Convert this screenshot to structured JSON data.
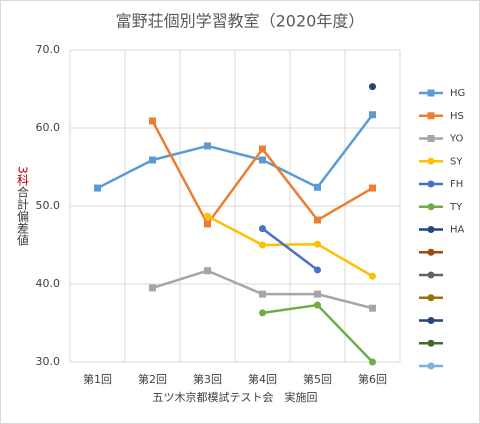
{
  "chart_data": {
    "type": "line",
    "title": "富野荘個別学習教室（2020年度）",
    "xlabel": "五ツ木京都模試テスト会　実施回",
    "ylabel": "3科合計偏差値",
    "categories": [
      "第1回",
      "第2回",
      "第3回",
      "第4回",
      "第5回",
      "第6回"
    ],
    "ylim": [
      30,
      70
    ],
    "yticks": [
      {
        "value": 30,
        "label": "30.0"
      },
      {
        "value": 40,
        "label": "40.0"
      },
      {
        "value": 50,
        "label": "50.0"
      },
      {
        "value": 60,
        "label": "60.0"
      },
      {
        "value": 70,
        "label": "70.0"
      }
    ],
    "grid": true,
    "legend": "right",
    "series": [
      {
        "name": "HG",
        "color": "#5b9bd5",
        "marker": "square",
        "values": [
          52.3,
          55.9,
          57.7,
          55.9,
          52.4,
          61.7
        ]
      },
      {
        "name": "HS",
        "color": "#ed7d31",
        "marker": "square",
        "values": [
          null,
          60.9,
          47.7,
          57.3,
          48.2,
          52.3
        ]
      },
      {
        "name": "YO",
        "color": "#a5a5a5",
        "marker": "square",
        "values": [
          null,
          39.5,
          41.7,
          38.7,
          38.7,
          36.9
        ]
      },
      {
        "name": "SY",
        "color": "#ffc000",
        "marker": "circle",
        "values": [
          null,
          null,
          48.7,
          45.0,
          45.1,
          41.0
        ]
      },
      {
        "name": "FH",
        "color": "#4472c4",
        "marker": "circle",
        "values": [
          null,
          null,
          null,
          47.1,
          41.8,
          null
        ]
      },
      {
        "name": "TY",
        "color": "#70ad47",
        "marker": "circle",
        "values": [
          null,
          null,
          null,
          36.3,
          37.3,
          30
        ]
      },
      {
        "name": "HA",
        "color": "#264478",
        "marker": "circle",
        "values": [
          null,
          null,
          null,
          null,
          null,
          65.3
        ]
      },
      {
        "name": null,
        "color": "#9e480e",
        "marker": "circle",
        "values": [
          null,
          null,
          null,
          null,
          null,
          null
        ]
      },
      {
        "name": null,
        "color": "#636363",
        "marker": "circle",
        "values": [
          null,
          null,
          null,
          null,
          null,
          null
        ]
      },
      {
        "name": null,
        "color": "#997300",
        "marker": "circle",
        "values": [
          null,
          null,
          null,
          null,
          null,
          null
        ]
      },
      {
        "name": null,
        "color": "#264478",
        "marker": "circle",
        "values": [
          null,
          null,
          null,
          null,
          null,
          null
        ]
      },
      {
        "name": null,
        "color": "#43682b",
        "marker": "circle",
        "values": [
          null,
          null,
          null,
          null,
          null,
          null
        ]
      },
      {
        "name": null,
        "color": "#7cafdd",
        "marker": "circle",
        "values": [
          null,
          null,
          null,
          null,
          null,
          null
        ]
      }
    ]
  }
}
